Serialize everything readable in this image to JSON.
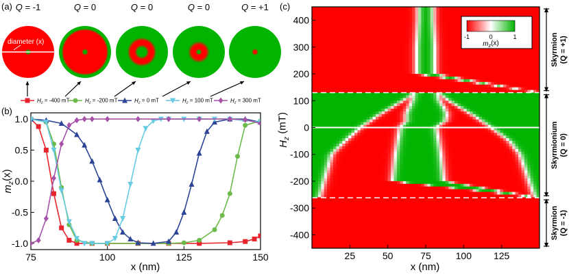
{
  "panel_a": {
    "label": "(a)",
    "diameter_label": "diameter (x)",
    "disks": [
      {
        "q_label": "Q = -1",
        "profile": [
          [
            0,
            1
          ],
          [
            0.05,
            1
          ],
          [
            0.12,
            -1
          ],
          [
            1,
            -1
          ]
        ]
      },
      {
        "q_label": "Q = 0",
        "profile": [
          [
            0,
            1
          ],
          [
            0.05,
            1
          ],
          [
            0.13,
            -1
          ],
          [
            0.82,
            -1
          ],
          [
            0.9,
            1
          ],
          [
            1,
            1
          ]
        ]
      },
      {
        "q_label": "Q = 0",
        "profile": [
          [
            0,
            1
          ],
          [
            0.17,
            1
          ],
          [
            0.28,
            -1
          ],
          [
            0.44,
            -1
          ],
          [
            0.56,
            1
          ],
          [
            1,
            1
          ]
        ]
      },
      {
        "q_label": "Q = 0",
        "profile": [
          [
            0,
            1
          ],
          [
            0.05,
            1
          ],
          [
            0.12,
            -1
          ],
          [
            0.28,
            -1
          ],
          [
            0.42,
            1
          ],
          [
            1,
            1
          ]
        ]
      },
      {
        "q_label": "Q = +1",
        "profile": [
          [
            0,
            -1
          ],
          [
            0.05,
            -1
          ],
          [
            0.13,
            1
          ],
          [
            1,
            1
          ]
        ]
      }
    ]
  },
  "legend_b": [
    {
      "label": "Hz = -400 mT",
      "color": "#e8242c",
      "marker": "square"
    },
    {
      "label": "Hz = -200 mT",
      "color": "#6cbb4a",
      "marker": "circle"
    },
    {
      "label": "Hz = 0 mT",
      "color": "#2c4596",
      "marker": "triangle-up"
    },
    {
      "label": "Hz = 100 mT",
      "color": "#66cbe1",
      "marker": "triangle-down"
    },
    {
      "label": "Hz = 300 mT",
      "color": "#a552a8",
      "marker": "diamond"
    }
  ],
  "chart_data": [
    {
      "panel": "(b)",
      "type": "line",
      "xlabel": "x (nm)",
      "ylabel": "mz(x)",
      "xlim": [
        75,
        150
      ],
      "ylim": [
        -1.1,
        1.1
      ],
      "xticks": [
        75,
        100,
        125,
        150
      ],
      "yticks": [
        -1.0,
        -0.5,
        0.0,
        0.5,
        1.0
      ],
      "ytick_labels": [
        "-1.0",
        "-0.5",
        "0.0",
        "0.5",
        "1.0"
      ],
      "series": [
        {
          "name": "Hz = -400 mT",
          "color": "#e8242c",
          "marker": "square",
          "x": [
            75,
            77.5,
            80,
            82.5,
            85,
            87.5,
            90,
            95,
            100,
            110,
            120,
            130,
            140,
            145,
            148,
            150
          ],
          "y": [
            1.0,
            0.88,
            0.5,
            -0.2,
            -0.75,
            -0.95,
            -1.0,
            -1.0,
            -1.0,
            -1.0,
            -1.0,
            -1.0,
            -0.99,
            -0.97,
            -0.93,
            -0.88
          ]
        },
        {
          "name": "Hz = -200 mT",
          "color": "#6cbb4a",
          "marker": "circle",
          "x": [
            75,
            80,
            82.5,
            85,
            87.5,
            90,
            95,
            100,
            110,
            120,
            125,
            130,
            135,
            137.5,
            140,
            142.5,
            145,
            150
          ],
          "y": [
            1.0,
            0.95,
            0.6,
            -0.1,
            -0.7,
            -0.95,
            -1.0,
            -1.0,
            -1.0,
            -1.0,
            -0.99,
            -0.95,
            -0.78,
            -0.55,
            -0.2,
            0.4,
            0.9,
            0.97
          ]
        },
        {
          "name": "Hz = 0 mT",
          "color": "#2c4596",
          "marker": "triangle-up",
          "x": [
            75,
            80,
            85,
            90,
            92.5,
            95,
            97.5,
            100,
            102.5,
            105,
            107.5,
            110,
            115,
            120,
            122.5,
            125,
            127.5,
            130,
            132.5,
            135,
            140,
            145,
            150
          ],
          "y": [
            1.0,
            0.98,
            0.93,
            0.75,
            0.58,
            0.32,
            0.02,
            -0.3,
            -0.6,
            -0.82,
            -0.93,
            -0.99,
            -1.0,
            -0.97,
            -0.82,
            -0.5,
            -0.05,
            0.45,
            0.8,
            0.95,
            1.0,
            1.0,
            0.95
          ]
        },
        {
          "name": "Hz = 100 mT",
          "color": "#66cbe1",
          "marker": "triangle-down",
          "x": [
            75,
            80,
            82.5,
            85,
            87.5,
            90,
            92.5,
            95,
            100,
            102.5,
            105,
            107.5,
            110,
            112.5,
            115,
            117.5,
            120,
            125,
            130,
            135,
            140,
            150
          ],
          "y": [
            1.0,
            0.95,
            0.5,
            -0.15,
            -0.65,
            -0.92,
            -1.0,
            -1.0,
            -1.0,
            -0.92,
            -0.6,
            -0.05,
            0.5,
            0.85,
            0.97,
            1.0,
            1.0,
            1.0,
            1.0,
            1.0,
            1.0,
            0.95
          ]
        },
        {
          "name": "Hz = 300 mT",
          "color": "#a552a8",
          "marker": "diamond",
          "x": [
            75,
            77.5,
            80,
            82.5,
            85,
            87.5,
            90,
            92.5,
            95,
            100,
            110,
            120,
            130,
            140,
            145,
            150
          ],
          "y": [
            -1.0,
            -0.95,
            -0.6,
            0.05,
            0.6,
            0.9,
            0.98,
            1.0,
            1.0,
            1.0,
            1.0,
            1.0,
            1.0,
            1.0,
            0.99,
            0.93
          ]
        }
      ]
    },
    {
      "panel": "(c)",
      "type": "heatmap",
      "xlabel": "x (nm)",
      "ylabel": "Hz (mT)",
      "xlim": [
        0,
        150
      ],
      "ylim": [
        -450,
        450
      ],
      "xticks": [
        25,
        50,
        75,
        100,
        125
      ],
      "yticks": [
        -400,
        -300,
        -200,
        -100,
        0,
        100,
        200,
        300,
        400
      ],
      "colorbar": {
        "label": "mz(x)",
        "ticks": [
          "-1",
          "0",
          "1"
        ],
        "min": -1,
        "max": 1
      },
      "colors": {
        "negative": "#ff0000",
        "zero": "#ffffff",
        "positive": "#00b400"
      },
      "dashed_lines_at": [
        130,
        -262
      ],
      "solid_line_at": 0,
      "boundaries": [
        {
          "name": "red-left",
          "H": [
            -450,
            -270,
            -262,
            -200,
            -100,
            -50,
            0,
            50,
            100,
            120,
            130
          ],
          "x": [
            150,
            150,
            5,
            8,
            13,
            22,
            32,
            45,
            60,
            66,
            67
          ]
        },
        {
          "name": "green-left",
          "H": [
            -262,
            -200,
            -100,
            0,
            25,
            50,
            75,
            100,
            130
          ],
          "x": [
            150,
            53,
            55,
            58,
            62,
            62,
            64,
            66,
            67
          ]
        },
        {
          "name": "core-red",
          "H": [
            130,
            200,
            300,
            400,
            450
          ],
          "x": [
            150,
            69,
            69,
            70,
            70
          ]
        },
        {
          "name": "core-green",
          "H": [
            130,
            200,
            300,
            400,
            450
          ],
          "x": [
            150,
            81,
            81,
            80,
            80
          ]
        },
        {
          "name": "red-right",
          "H": [
            -262,
            -200,
            -100,
            0,
            25,
            50,
            75,
            100,
            130
          ],
          "x": [
            150,
            87,
            85,
            82,
            88,
            89,
            87,
            84,
            83
          ]
        },
        {
          "name": "green-right",
          "H": [
            -450,
            -270,
            -262,
            -200,
            -100,
            -50,
            0,
            50,
            100,
            120,
            130
          ],
          "x": [
            150,
            150,
            147,
            143,
            137,
            130,
            118,
            105,
            90,
            85,
            83
          ]
        }
      ],
      "regions": [
        {
          "label_line1": "Skyrmion",
          "label_line2": "(Q = +1)",
          "H_range": [
            130,
            450
          ]
        },
        {
          "label_line1": "Skyrmionium",
          "label_line2": "(Q = 0)",
          "H_range": [
            -262,
            130
          ]
        },
        {
          "label_line1": "Skyrmion",
          "label_line2": "(Q = -1)",
          "H_range": [
            -450,
            -262
          ]
        }
      ]
    }
  ]
}
